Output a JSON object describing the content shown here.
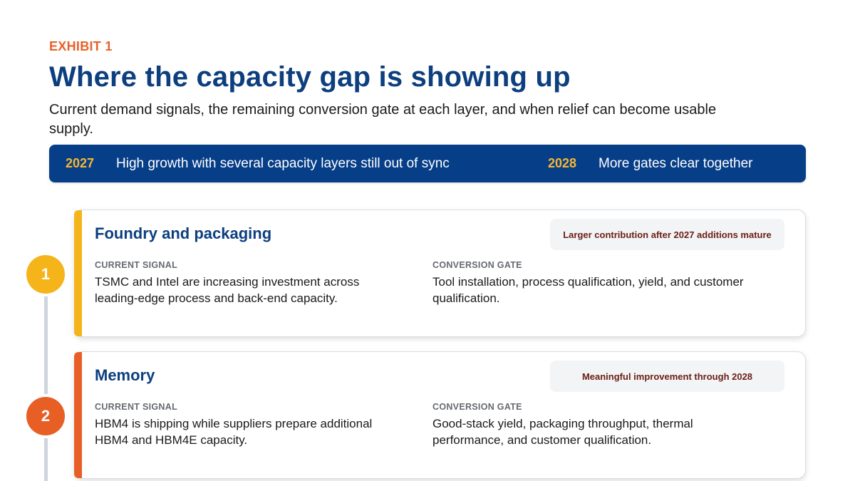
{
  "exhibit_label": "EXHIBIT 1",
  "title": "Where the capacity gap is showing up",
  "subtitle": "Current demand signals, the remaining conversion gate at each layer, and when relief can become usable supply.",
  "banner": {
    "items": [
      {
        "year": "2027",
        "text": "High growth with several capacity layers still out of sync"
      },
      {
        "year": "2028",
        "text": "More gates clear together"
      }
    ]
  },
  "colors": {
    "navy": "#073e88",
    "title_blue": "#0d3f7f",
    "orange": "#e8622c",
    "gold": "#f5b731",
    "amber_accent": "#f5b41a",
    "orange_accent": "#e85f26"
  },
  "cards": [
    {
      "step": "1",
      "title": "Foundry and packaging",
      "badge": "Larger contribution after 2027 additions mature",
      "signal_label": "CURRENT SIGNAL",
      "signal_text": "TSMC and Intel are increasing investment across leading-edge process and back-end capacity.",
      "gate_label": "CONVERSION GATE",
      "gate_text": "Tool installation, process qualification, yield, and customer qualification."
    },
    {
      "step": "2",
      "title": "Memory",
      "badge": "Meaningful improvement through 2028",
      "signal_label": "CURRENT SIGNAL",
      "signal_text": "HBM4 is shipping while suppliers prepare additional HBM4 and HBM4E capacity.",
      "gate_label": "CONVERSION GATE",
      "gate_text": "Good-stack yield, packaging throughput, thermal performance, and customer qualification."
    }
  ]
}
